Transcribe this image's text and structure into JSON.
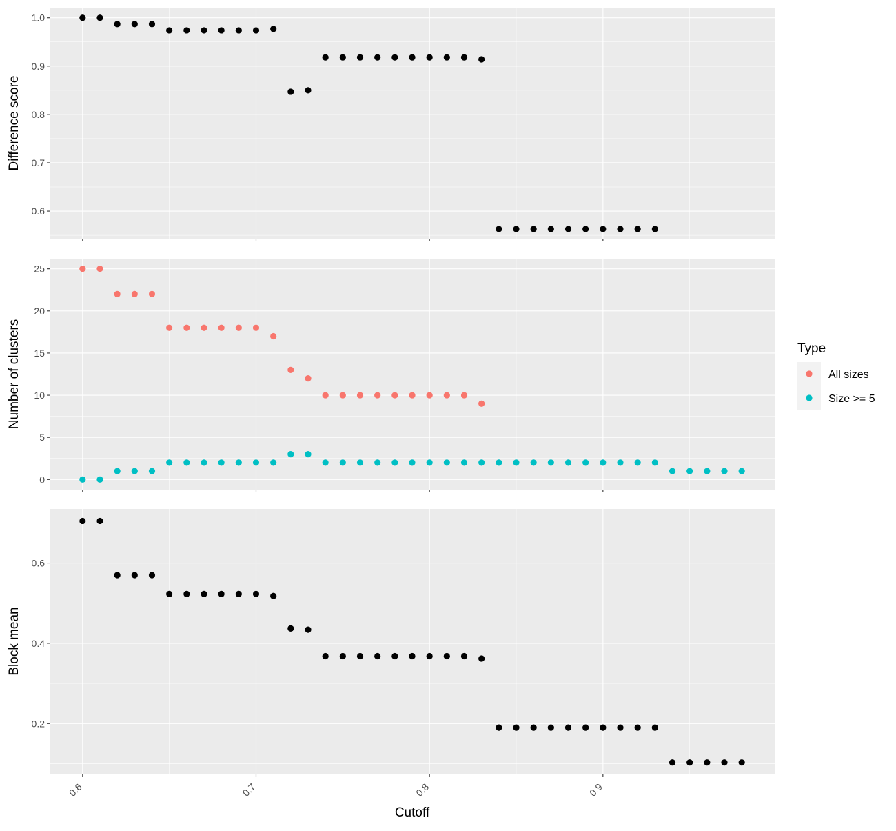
{
  "chart_data": [
    {
      "type": "scatter",
      "ylabel": "Difference score",
      "xlim": [
        0.581,
        0.999
      ],
      "ylim": [
        0.543,
        1.021
      ],
      "yticks": [
        0.6,
        0.7,
        0.8,
        0.9,
        1.0
      ],
      "ytick_labels": [
        "0.6",
        "0.7",
        "0.8",
        "0.9",
        "1.0"
      ],
      "grid": true,
      "series": [
        {
          "color": "#000000",
          "x": [
            0.6,
            0.61,
            0.62,
            0.63,
            0.64,
            0.65,
            0.66,
            0.67,
            0.68,
            0.69,
            0.7,
            0.71,
            0.72,
            0.73,
            0.74,
            0.75,
            0.76,
            0.77,
            0.78,
            0.79,
            0.8,
            0.81,
            0.82,
            0.83,
            0.84,
            0.85,
            0.86,
            0.87,
            0.88,
            0.89,
            0.9,
            0.91,
            0.92,
            0.93
          ],
          "y": [
            1.0,
            1.0,
            0.987,
            0.987,
            0.987,
            0.974,
            0.974,
            0.974,
            0.974,
            0.974,
            0.974,
            0.977,
            0.847,
            0.85,
            0.918,
            0.918,
            0.918,
            0.918,
            0.918,
            0.918,
            0.918,
            0.918,
            0.918,
            0.914,
            0.563,
            0.563,
            0.563,
            0.563,
            0.563,
            0.563,
            0.563,
            0.563,
            0.563,
            0.563
          ]
        }
      ]
    },
    {
      "type": "scatter",
      "ylabel": "Number of clusters",
      "xlim": [
        0.581,
        0.999
      ],
      "ylim": [
        -1.2,
        26.2
      ],
      "yticks": [
        0,
        5,
        10,
        15,
        20,
        25
      ],
      "ytick_labels": [
        "0",
        "5",
        "10",
        "15",
        "20",
        "25"
      ],
      "grid": true,
      "legend": {
        "title": "Type",
        "position": "right",
        "entries": [
          "All sizes",
          "Size >= 5"
        ]
      },
      "series": [
        {
          "name": "All sizes",
          "color": "#F8766D",
          "x": [
            0.6,
            0.61,
            0.62,
            0.63,
            0.64,
            0.65,
            0.66,
            0.67,
            0.68,
            0.69,
            0.7,
            0.71,
            0.72,
            0.73,
            0.74,
            0.75,
            0.76,
            0.77,
            0.78,
            0.79,
            0.8,
            0.81,
            0.82,
            0.83
          ],
          "y": [
            25,
            25,
            22,
            22,
            22,
            18,
            18,
            18,
            18,
            18,
            18,
            17,
            13,
            12,
            10,
            10,
            10,
            10,
            10,
            10,
            10,
            10,
            10,
            9
          ]
        },
        {
          "name": "Size >= 5",
          "color": "#00BFC4",
          "x": [
            0.6,
            0.61,
            0.62,
            0.63,
            0.64,
            0.65,
            0.66,
            0.67,
            0.68,
            0.69,
            0.7,
            0.71,
            0.72,
            0.73,
            0.74,
            0.75,
            0.76,
            0.77,
            0.78,
            0.79,
            0.8,
            0.81,
            0.82,
            0.83,
            0.84,
            0.85,
            0.86,
            0.87,
            0.88,
            0.89,
            0.9,
            0.91,
            0.92,
            0.93,
            0.94,
            0.95,
            0.96,
            0.97,
            0.98
          ],
          "y": [
            0,
            0,
            1,
            1,
            1,
            2,
            2,
            2,
            2,
            2,
            2,
            2,
            3,
            3,
            2,
            2,
            2,
            2,
            2,
            2,
            2,
            2,
            2,
            2,
            2,
            2,
            2,
            2,
            2,
            2,
            2,
            2,
            2,
            2,
            1,
            1,
            1,
            1,
            1
          ]
        }
      ]
    },
    {
      "type": "scatter",
      "ylabel": "Block mean",
      "xlabel": "Cutoff",
      "xticks": [
        0.6,
        0.7,
        0.8,
        0.9
      ],
      "xtick_labels": [
        "0.6",
        "0.7",
        "0.8",
        "0.9"
      ],
      "xtick_rotation": -45,
      "xlim": [
        0.581,
        0.999
      ],
      "ylim": [
        0.075,
        0.735
      ],
      "yticks": [
        0.2,
        0.4,
        0.6
      ],
      "ytick_labels": [
        "0.2",
        "0.4",
        "0.6"
      ],
      "grid": true,
      "series": [
        {
          "color": "#000000",
          "x": [
            0.6,
            0.61,
            0.62,
            0.63,
            0.64,
            0.65,
            0.66,
            0.67,
            0.68,
            0.69,
            0.7,
            0.71,
            0.72,
            0.73,
            0.74,
            0.75,
            0.76,
            0.77,
            0.78,
            0.79,
            0.8,
            0.81,
            0.82,
            0.83,
            0.84,
            0.85,
            0.86,
            0.87,
            0.88,
            0.89,
            0.9,
            0.91,
            0.92,
            0.93,
            0.94,
            0.95,
            0.96,
            0.97,
            0.98
          ],
          "y": [
            0.705,
            0.705,
            0.57,
            0.57,
            0.57,
            0.523,
            0.523,
            0.523,
            0.523,
            0.523,
            0.523,
            0.518,
            0.437,
            0.434,
            0.368,
            0.368,
            0.368,
            0.368,
            0.368,
            0.368,
            0.368,
            0.368,
            0.368,
            0.362,
            0.19,
            0.19,
            0.19,
            0.19,
            0.19,
            0.19,
            0.19,
            0.19,
            0.19,
            0.19,
            0.103,
            0.103,
            0.103,
            0.103,
            0.103
          ]
        }
      ]
    }
  ]
}
